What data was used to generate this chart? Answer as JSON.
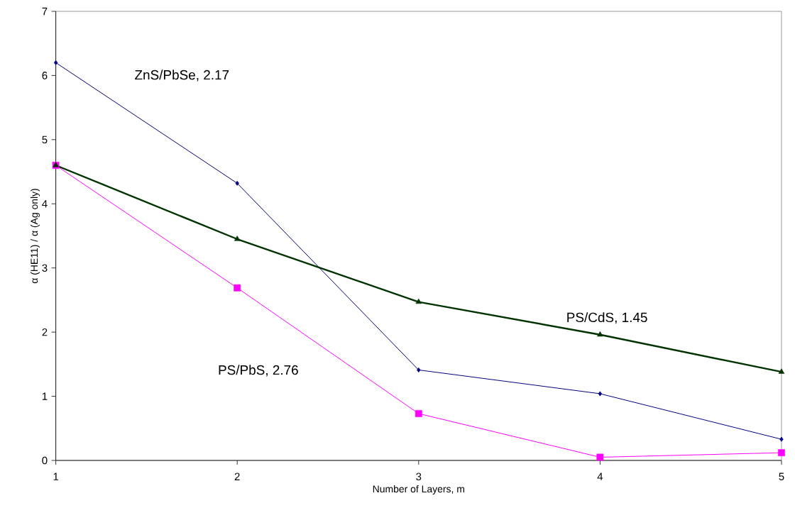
{
  "chart_data": {
    "type": "line",
    "xlabel": "Number of Layers, m",
    "ylabel": "α (HE11) / α (Ag only)",
    "x": [
      1,
      2,
      3,
      4,
      5
    ],
    "xlim": [
      1,
      5
    ],
    "xticks": [
      1,
      2,
      3,
      4,
      5
    ],
    "ylim": [
      0,
      7
    ],
    "yticks": [
      0,
      1,
      2,
      3,
      4,
      5,
      6,
      7
    ],
    "grid": false,
    "legend": false,
    "series": [
      {
        "name": "ZnS/PbSe, 2.17",
        "color": "#000080",
        "marker": "diamond",
        "values": [
          6.2,
          4.32,
          1.41,
          1.04,
          0.33
        ]
      },
      {
        "name": "PS/PbS, 2.76",
        "color": "#ff00ff",
        "marker": "square",
        "values": [
          4.6,
          2.69,
          0.73,
          0.05,
          0.12
        ]
      },
      {
        "name": "PS/CdS, 1.45",
        "color": "#003300",
        "marker": "triangle",
        "values": [
          4.6,
          3.45,
          2.47,
          1.96,
          1.38
        ]
      }
    ]
  }
}
